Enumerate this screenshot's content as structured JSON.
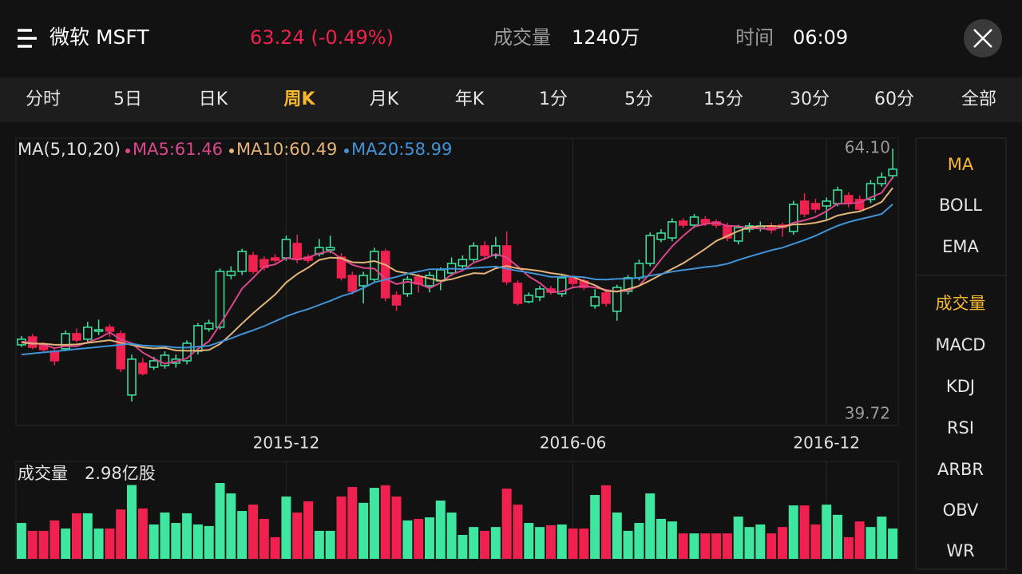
{
  "header": {
    "title": "微软 MSFT",
    "price": "63.24 (-0.49%)",
    "volume_label": "成交量",
    "volume": "1240万",
    "time_label": "时间",
    "time": "06:09"
  },
  "tabs": [
    "分时",
    "5日",
    "日K",
    "周K",
    "月K",
    "年K",
    "1分",
    "5分",
    "15分",
    "30分",
    "60分",
    "全部"
  ],
  "active_tab": 3,
  "indicators_main": [
    "MA",
    "BOLL",
    "EMA"
  ],
  "indicators_sub": [
    "成交量",
    "MACD",
    "KDJ",
    "RSI",
    "ARBR",
    "OBV",
    "WR"
  ],
  "active_main": 0,
  "active_sub": 0,
  "chart_data": [
    {
      "type": "candlestick",
      "indicator": "MA(5,10,20)",
      "up_color": "#3fe6a0",
      "down_color": "#f0214f",
      "categories": [
        null,
        null,
        null,
        null,
        null,
        null,
        null,
        null,
        null,
        null,
        null,
        null,
        null,
        null,
        null,
        null,
        null,
        null,
        null,
        null,
        null,
        null,
        null,
        null,
        "2015-12",
        null,
        null,
        null,
        null,
        null,
        null,
        null,
        null,
        null,
        null,
        null,
        null,
        null,
        null,
        null,
        null,
        null,
        null,
        null,
        null,
        null,
        null,
        null,
        null,
        null,
        "2016-06",
        null,
        null,
        null,
        null,
        null,
        null,
        null,
        null,
        null,
        null,
        null,
        null,
        null,
        null,
        null,
        null,
        null,
        null,
        null,
        null,
        null,
        null,
        "2016-12",
        null,
        null,
        null,
        null,
        null,
        null
      ],
      "open": [
        46.09,
        46.82,
        46.09,
        45.51,
        45.73,
        47.12,
        46.61,
        47.34,
        47.71,
        47.12,
        41.49,
        44.41,
        44.04,
        44.19,
        44.41,
        44.63,
        45.51,
        47.56,
        47.71,
        52.46,
        52.83,
        54.29,
        53.92,
        54.07,
        54.07,
        55.39,
        54.14,
        54.44,
        54.8,
        54.14,
        52.46,
        51.51,
        52.1,
        54.66,
        50.63,
        50.78,
        52.32,
        51.51,
        51.95,
        52.68,
        53.34,
        53.92,
        55.17,
        54.29,
        55.17,
        51.73,
        50.05,
        50.49,
        51.22,
        50.78,
        52.24,
        51.95,
        49.68,
        50.85,
        49.17,
        51.0,
        52.24,
        53.56,
        55.76,
        55.9,
        57.44,
        57.07,
        57.59,
        57.37,
        57.0,
        55.61,
        56.71,
        56.78,
        57.0,
        57.07,
        56.49,
        59.27,
        59.05,
        58.83,
        59.05,
        59.78,
        59.42,
        59.42,
        60.88,
        61.61
      ],
      "high": [
        46.9,
        47.1,
        46.3,
        45.8,
        47.4,
        47.6,
        48.2,
        48.4,
        48.0,
        47.4,
        45.2,
        44.9,
        45.0,
        45.5,
        45.2,
        46.5,
        48.1,
        48.4,
        53.1,
        53.3,
        54.9,
        54.6,
        54.2,
        54.4,
        56.1,
        56.2,
        54.4,
        55.8,
        56.1,
        54.5,
        52.8,
        52.8,
        55.0,
        54.9,
        51.0,
        52.4,
        52.6,
        52.8,
        53.2,
        54.1,
        54.3,
        55.5,
        55.6,
        56.0,
        56.5,
        52.0,
        50.9,
        51.5,
        51.5,
        52.5,
        52.5,
        52.2,
        51.2,
        51.1,
        51.6,
        52.5,
        53.9,
        56.4,
        56.7,
        57.7,
        57.7,
        58.1,
        57.9,
        57.6,
        57.3,
        57.1,
        57.3,
        57.4,
        57.3,
        57.3,
        59.3,
        60.0,
        59.5,
        59.6,
        60.6,
        60.1,
        59.8,
        61.2,
        61.9,
        64.1
      ],
      "low": [
        45.9,
        45.7,
        45.4,
        44.2,
        45.5,
        46.3,
        46.4,
        47.0,
        46.8,
        43.6,
        40.9,
        43.3,
        43.8,
        43.9,
        44.0,
        44.3,
        45.2,
        47.3,
        47.5,
        52.1,
        52.5,
        52.6,
        52.9,
        53.6,
        53.8,
        53.6,
        53.6,
        54.2,
        54.5,
        52.0,
        50.7,
        49.9,
        51.8,
        50.1,
        49.2,
        50.5,
        50.9,
        50.9,
        51.1,
        52.4,
        53.0,
        53.7,
        54.0,
        54.0,
        51.6,
        49.7,
        49.9,
        50.1,
        50.7,
        50.5,
        51.4,
        51.1,
        49.4,
        49.6,
        48.3,
        50.7,
        52.0,
        53.3,
        55.5,
        55.6,
        56.8,
        56.8,
        57.0,
        56.8,
        55.6,
        55.3,
        56.4,
        56.5,
        56.3,
        56.0,
        56.2,
        57.8,
        58.2,
        57.6,
        58.8,
        58.7,
        58.3,
        59.1,
        60.6,
        61.3
      ],
      "close": [
        46.61,
        45.87,
        45.65,
        44.63,
        47.12,
        46.53,
        47.71,
        47.48,
        47.34,
        43.9,
        44.78,
        43.46,
        44.63,
        45.14,
        44.78,
        46.24,
        47.85,
        48.07,
        52.83,
        52.83,
        54.66,
        52.83,
        53.19,
        53.85,
        55.76,
        53.92,
        53.85,
        55.02,
        55.02,
        52.24,
        51.0,
        52.46,
        54.66,
        50.41,
        49.75,
        52.1,
        51.66,
        52.46,
        52.97,
        53.56,
        53.92,
        55.17,
        54.29,
        55.17,
        51.88,
        49.9,
        50.63,
        51.22,
        50.92,
        52.24,
        51.73,
        51.36,
        50.49,
        49.9,
        51.36,
        52.24,
        53.56,
        56.12,
        56.34,
        57.37,
        57.07,
        57.81,
        57.22,
        57.07,
        55.9,
        56.85,
        57.0,
        57.0,
        56.63,
        56.85,
        58.97,
        58.1,
        58.54,
        59.27,
        60.29,
        59.05,
        58.54,
        60.88,
        61.46,
        62.2
      ],
      "series": [
        {
          "name": "MA5:61.46",
          "color": "#d8478c",
          "values": [
            46.4,
            46.3,
            46.1,
            45.8,
            45.98,
            45.96,
            46.33,
            46.69,
            47.24,
            46.59,
            46.24,
            45.39,
            44.82,
            44.38,
            44.56,
            44.85,
            45.73,
            46.42,
            47.95,
            49.56,
            51.25,
            52.24,
            53.27,
            53.47,
            54.06,
            53.91,
            54.11,
            54.48,
            54.71,
            54.01,
            53.43,
            53.15,
            53.08,
            52.15,
            51.66,
            51.88,
            51.72,
            51.28,
            51.79,
            52.55,
            52.91,
            53.62,
            53.98,
            54.42,
            54.09,
            53.28,
            52.37,
            51.76,
            50.91,
            50.98,
            51.35,
            51.49,
            51.35,
            51.14,
            50.97,
            51.07,
            51.51,
            52.64,
            53.92,
            55.13,
            56.09,
            56.94,
            57.16,
            57.31,
            57.01,
            56.97,
            56.81,
            56.76,
            56.68,
            56.87,
            57.29,
            57.51,
            57.82,
            58.35,
            59.03,
            59.05,
            59.14,
            59.61,
            60.04,
            61.46
          ]
        },
        {
          "name": "MA10:60.49",
          "color": "#e3b377",
          "values": [
            46.3,
            46.2,
            46.2,
            46.1,
            46.1,
            46.13,
            46.27,
            46.4,
            46.52,
            46.29,
            46.1,
            45.86,
            45.76,
            45.81,
            45.58,
            45.55,
            45.56,
            45.62,
            46.17,
            47.06,
            48.05,
            48.99,
            49.85,
            50.71,
            51.81,
            52.58,
            53.18,
            53.88,
            54.09,
            54.04,
            53.67,
            53.63,
            53.78,
            53.43,
            52.84,
            52.66,
            52.44,
            52.18,
            51.97,
            52.11,
            52.4,
            52.67,
            52.63,
            53.11,
            53.32,
            53.1,
            53.0,
            52.87,
            52.67,
            52.54,
            52.32,
            51.93,
            51.56,
            51.03,
            50.98,
            51.21,
            51.5,
            52.0,
            52.53,
            53.05,
            53.58,
            54.23,
            54.9,
            55.62,
            56.07,
            56.53,
            56.88,
            56.96,
            57.0,
            56.94,
            57.13,
            57.16,
            57.29,
            57.52,
            57.95,
            58.17,
            58.33,
            58.72,
            59.2,
            60.49
          ]
        },
        {
          "name": "MA20:58.99",
          "color": "#3f93d6",
          "values": [
            45.2,
            45.3,
            45.4,
            45.5,
            45.6,
            45.7,
            45.8,
            45.9,
            46.0,
            46.1,
            46.2,
            46.03,
            45.98,
            45.96,
            45.84,
            45.84,
            45.92,
            46.01,
            46.35,
            46.68,
            47.08,
            47.43,
            47.81,
            48.26,
            48.7,
            49.07,
            49.37,
            49.75,
            50.13,
            50.55,
            50.86,
            51.31,
            51.82,
            52.07,
            52.33,
            52.62,
            52.81,
            53.03,
            53.03,
            53.08,
            53.04,
            53.15,
            53.21,
            53.27,
            53.08,
            52.88,
            52.72,
            52.53,
            52.32,
            52.33,
            52.36,
            52.3,
            52.1,
            52.07,
            52.15,
            52.16,
            52.25,
            52.44,
            52.6,
            52.8,
            52.95,
            53.08,
            53.23,
            53.33,
            53.53,
            53.87,
            54.19,
            54.48,
            54.77,
            55.0,
            55.36,
            55.7,
            56.1,
            56.57,
            57.01,
            57.35,
            57.61,
            57.84,
            58.1,
            58.99
          ]
        }
      ],
      "ylim": [
        39.72,
        64.1
      ],
      "yticks": [
        39.72,
        {
          "value": 64.1,
          "label": "64.10"
        }
      ],
      "grid": true
    },
    {
      "type": "bar",
      "title": "成交量",
      "values": [
        1.41,
        1.1,
        1.1,
        1.51,
        1.19,
        1.79,
        1.79,
        1.19,
        1.19,
        1.94,
        2.9,
        1.98,
        1.35,
        1.82,
        1.41,
        1.79,
        1.35,
        1.29,
        2.98,
        2.57,
        1.88,
        2.13,
        1.57,
        0.85,
        2.45,
        1.82,
        2.26,
        1.1,
        1.1,
        2.45,
        2.82,
        2.2,
        2.79,
        2.89,
        2.45,
        1.51,
        1.57,
        1.63,
        2.29,
        1.82,
        0.94,
        1.25,
        1.1,
        1.25,
        2.76,
        2.13,
        1.41,
        1.25,
        1.32,
        1.35,
        1.19,
        1.19,
        2.51,
        2.89,
        1.82,
        1.1,
        1.41,
        2.57,
        1.57,
        1.47,
        1.0,
        1.0,
        1.0,
        1.0,
        1.0,
        1.66,
        1.25,
        1.35,
        1.0,
        1.25,
        2.1,
        2.1,
        1.35,
        2.13,
        1.73,
        0.85,
        1.47,
        1.25,
        1.66,
        1.19
      ],
      "ylim": [
        0,
        2.98
      ],
      "yticks": [
        {
          "value": 2.98,
          "label": "2.98亿股"
        }
      ]
    }
  ]
}
